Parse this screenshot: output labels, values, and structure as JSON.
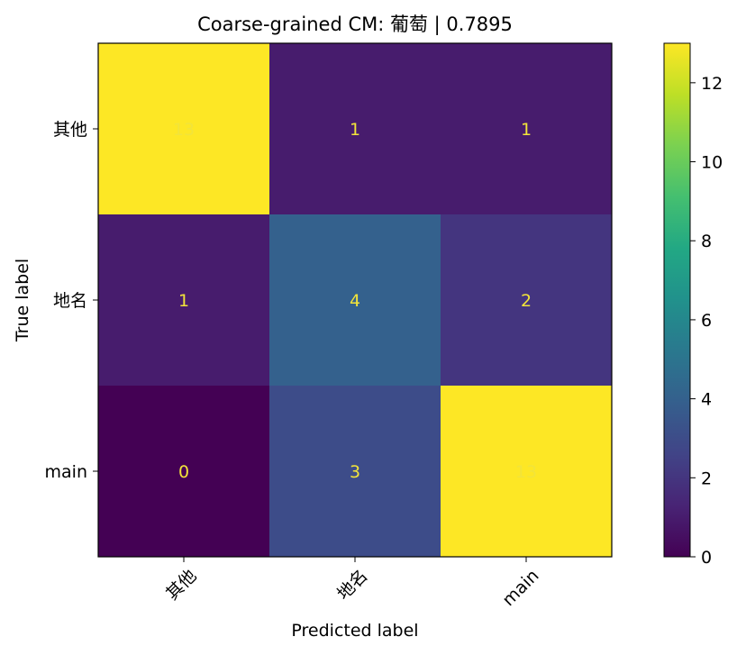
{
  "chart_data": {
    "type": "heatmap",
    "title": "Coarse-grained CM: 葡萄 | 0.7895",
    "xlabel": "Predicted label",
    "ylabel": "True label",
    "x_categories": [
      "其他",
      "地名",
      "main"
    ],
    "y_categories": [
      "其他",
      "地名",
      "main"
    ],
    "values": [
      [
        13,
        1,
        1
      ],
      [
        1,
        4,
        2
      ],
      [
        0,
        3,
        13
      ]
    ],
    "colorbar": {
      "range": [
        0,
        13
      ],
      "ticks": [
        0,
        2,
        4,
        6,
        8,
        10,
        12
      ],
      "colormap": "viridis"
    },
    "annotation_color": "#f2e43a"
  }
}
